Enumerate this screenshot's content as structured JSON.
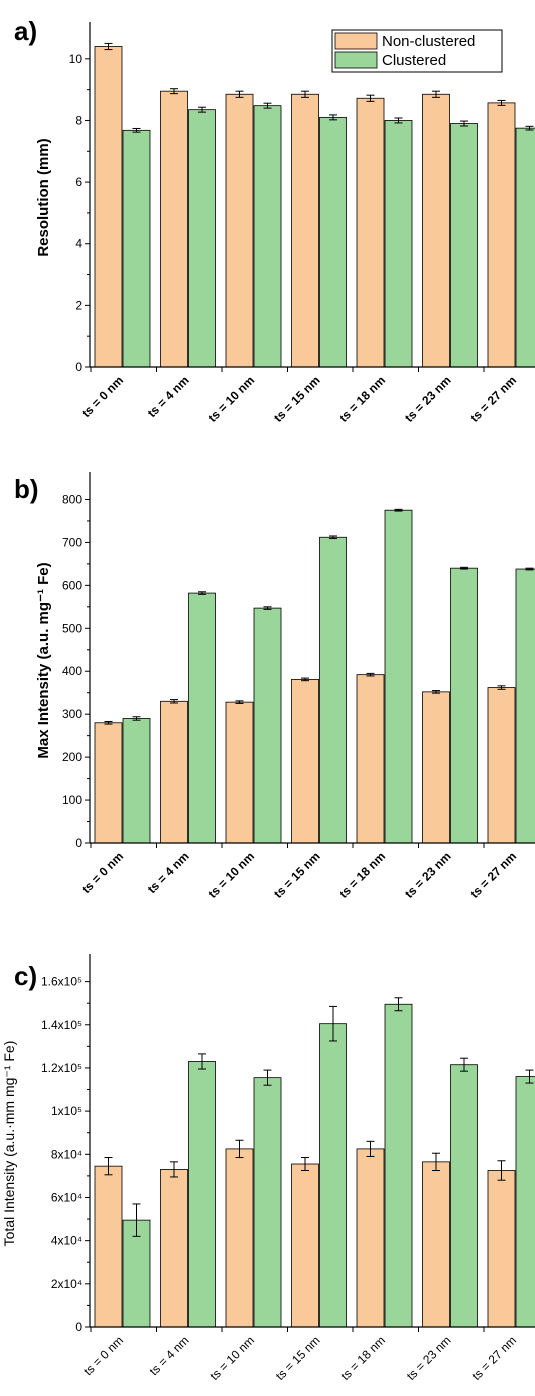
{
  "colors": {
    "non_clustered": "#f9c99a",
    "clustered": "#9ad69a",
    "axis": "#000000"
  },
  "chart_data": [
    {
      "panel": "a)",
      "type": "bar",
      "ylabel": "Resolution (mm)",
      "categories": [
        "ts = 0 nm",
        "ts = 4 nm",
        "ts = 10 nm",
        "ts = 15 nm",
        "ts = 18 nm",
        "ts = 23 nm",
        "ts = 27 nm"
      ],
      "ylim": [
        0,
        11
      ],
      "yticks": [
        0,
        2,
        4,
        6,
        8,
        10
      ],
      "ytick_labels": [
        "0",
        "2",
        "4",
        "6",
        "8",
        "10"
      ],
      "legend": {
        "placement": "top-right",
        "entries": [
          "Non-clustered",
          "Clustered"
        ]
      },
      "series": [
        {
          "name": "Non-clustered",
          "values": [
            10.4,
            8.95,
            8.85,
            8.85,
            8.72,
            8.85,
            8.57
          ],
          "errors": [
            0.1,
            0.08,
            0.1,
            0.1,
            0.1,
            0.1,
            0.08
          ]
        },
        {
          "name": "Clustered",
          "values": [
            7.68,
            8.35,
            8.48,
            8.1,
            8.0,
            7.9,
            7.75
          ],
          "errors": [
            0.06,
            0.08,
            0.08,
            0.08,
            0.08,
            0.08,
            0.06
          ]
        }
      ]
    },
    {
      "panel": "b)",
      "type": "bar",
      "ylabel": "Max Intensity (a.u. mg⁻¹ Fe)",
      "categories": [
        "ts = 0 nm",
        "ts = 4 nm",
        "ts = 10 nm",
        "ts = 15 nm",
        "ts = 18 nm",
        "ts = 23 nm",
        "ts = 27 nm"
      ],
      "ylim": [
        0,
        850
      ],
      "yticks": [
        0,
        100,
        200,
        300,
        400,
        500,
        600,
        700,
        800
      ],
      "ytick_labels": [
        "0",
        "100",
        "200",
        "300",
        "400",
        "500",
        "600",
        "700",
        "800"
      ],
      "series": [
        {
          "name": "Non-clustered",
          "values": [
            280,
            330,
            328,
            381,
            392,
            352,
            362
          ],
          "errors": [
            3,
            4,
            3,
            3,
            3,
            3,
            4
          ]
        },
        {
          "name": "Clustered",
          "values": [
            290,
            582,
            547,
            712,
            775,
            640,
            638
          ],
          "errors": [
            4,
            3,
            3,
            3,
            2,
            2,
            2
          ]
        }
      ]
    },
    {
      "panel": "c)",
      "type": "bar",
      "ylabel": "Total Intensity (a.u.·mm mg⁻¹ Fe)",
      "categories": [
        "ts = 0 nm",
        "ts = 4 nm",
        "ts = 10 nm",
        "ts = 15 nm",
        "ts = 18 nm",
        "ts = 23 nm",
        "ts = 27 nm"
      ],
      "ylim": [
        0,
        170000
      ],
      "yticks": [
        0,
        20000,
        40000,
        60000,
        80000,
        100000,
        120000,
        140000,
        160000
      ],
      "ytick_labels": [
        "0",
        "2x10⁴",
        "4x10⁴",
        "6x10⁴",
        "8x10⁴",
        "1x10⁵",
        "1.2x10⁵",
        "1.4x10⁵",
        "1.6x10⁵"
      ],
      "series": [
        {
          "name": "Non-clustered",
          "values": [
            74500,
            73000,
            82500,
            75500,
            82500,
            76500,
            72500
          ],
          "errors": [
            4000,
            3500,
            4000,
            3000,
            3500,
            4000,
            4500
          ]
        },
        {
          "name": "Clustered",
          "values": [
            49500,
            123000,
            115500,
            140500,
            149500,
            121500,
            116000
          ],
          "errors": [
            7500,
            3500,
            3500,
            8000,
            3000,
            3000,
            3000
          ]
        }
      ]
    }
  ]
}
